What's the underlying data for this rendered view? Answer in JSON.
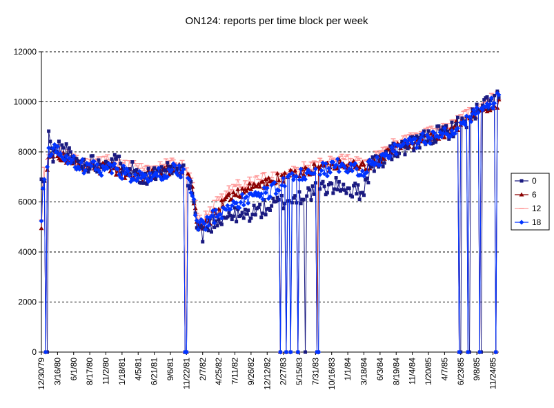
{
  "chart_data": {
    "type": "line",
    "title": "ON124: reports per time block per week",
    "xlabel": "",
    "ylabel": "",
    "ylim": [
      0,
      12000
    ],
    "yticks": [
      0,
      2000,
      4000,
      6000,
      8000,
      10000,
      12000
    ],
    "grid": "horizontal dashed",
    "legend_position": "right",
    "x_tick_labels": [
      "12/30/79",
      "3/16/80",
      "6/1/80",
      "8/17/80",
      "11/2/80",
      "1/18/81",
      "4/5/81",
      "6/21/81",
      "9/6/81",
      "11/22/81",
      "2/7/82",
      "4/25/82",
      "7/11/82",
      "9/26/82",
      "12/12/82",
      "2/27/83",
      "5/15/83",
      "7/31/83",
      "10/16/83",
      "1/1/84",
      "3/18/84",
      "6/3/84",
      "8/19/84",
      "11/4/84",
      "1/20/85",
      "4/7/85",
      "6/23/85",
      "9/8/85",
      "11/24/85"
    ],
    "series_colors": {
      "0": "#1a1a80",
      "6": "#8b0000",
      "12": "#ff9999",
      "18": "#0033ff"
    },
    "series_markers": {
      "0": "square",
      "6": "triangle",
      "12": "dash",
      "18": "diamond"
    },
    "week_start": "1979-12-30",
    "weeks": 313,
    "anchors_week": [
      0,
      1,
      2,
      3,
      4,
      5,
      6,
      7,
      8,
      10,
      12,
      14,
      17,
      20,
      25,
      30,
      35,
      40,
      45,
      50,
      55,
      60,
      65,
      70,
      75,
      80,
      85,
      90,
      95,
      98,
      99,
      100,
      103,
      106,
      110,
      115,
      120,
      125,
      130,
      135,
      140,
      145,
      150,
      155,
      160,
      165,
      170,
      175,
      180,
      185,
      190,
      195,
      200,
      205,
      210,
      215,
      220,
      225,
      230,
      235,
      240,
      245,
      250,
      255,
      260,
      265,
      270,
      275,
      280,
      285,
      290,
      295,
      300,
      305,
      310,
      312
    ],
    "series": [
      {
        "name": "0",
        "anchors": [
          6800,
          6900,
          6600,
          6300,
          7000,
          8700,
          8200,
          8000,
          7900,
          8000,
          8200,
          8100,
          8000,
          7800,
          7600,
          7500,
          7600,
          7500,
          7700,
          7600,
          7500,
          7400,
          7200,
          7000,
          7100,
          7000,
          7200,
          7300,
          7200,
          7100,
          6800,
          6700,
          6500,
          5000,
          4700,
          5100,
          5300,
          5400,
          5500,
          5400,
          5500,
          5600,
          5700,
          5800,
          5900,
          6000,
          6100,
          6200,
          6300,
          6400,
          6500,
          6600,
          6600,
          6700,
          6500,
          6400,
          6500,
          7500,
          7600,
          7800,
          8000,
          8100,
          8200,
          8300,
          8500,
          8600,
          8700,
          8800,
          8900,
          9100,
          9300,
          9500,
          9800,
          10000,
          10100,
          10200
        ]
      },
      {
        "name": "6",
        "anchors": [
          4800,
          6500,
          7000,
          7200,
          7300,
          7600,
          7800,
          7900,
          7900,
          8000,
          7900,
          7800,
          7700,
          7600,
          7500,
          7400,
          7400,
          7300,
          7400,
          7300,
          7200,
          7100,
          7100,
          7000,
          7100,
          7200,
          7300,
          7300,
          7300,
          7200,
          7100,
          6900,
          6500,
          5200,
          5000,
          5300,
          5600,
          6000,
          6300,
          6400,
          6500,
          6600,
          6700,
          6800,
          6900,
          7000,
          7100,
          7100,
          7200,
          7300,
          7400,
          7400,
          7500,
          7600,
          7500,
          7400,
          7400,
          7500,
          7700,
          7900,
          8100,
          8200,
          8300,
          8400,
          8500,
          8600,
          8700,
          8800,
          8900,
          9100,
          9300,
          9500,
          9700,
          9800,
          9900,
          9900
        ]
      },
      {
        "name": "12",
        "anchors": [
          5500,
          6700,
          7200,
          7400,
          7600,
          7900,
          8000,
          8100,
          8100,
          8200,
          8100,
          8000,
          7900,
          7800,
          7700,
          7600,
          7600,
          7600,
          7700,
          7600,
          7500,
          7500,
          7400,
          7300,
          7300,
          7400,
          7500,
          7600,
          7500,
          7400,
          7300,
          7100,
          6600,
          5500,
          5300,
          5700,
          6000,
          6300,
          6600,
          6700,
          6800,
          6900,
          7000,
          7000,
          7100,
          7200,
          7300,
          7300,
          7400,
          7500,
          7600,
          7600,
          7700,
          7800,
          7700,
          7600,
          7600,
          7700,
          7900,
          8100,
          8300,
          8400,
          8500,
          8600,
          8700,
          8800,
          8900,
          9000,
          9100,
          9300,
          9500,
          9700,
          9900,
          10100,
          10200,
          10300
        ]
      },
      {
        "name": "18",
        "anchors": [
          5400,
          6700,
          7000,
          7200,
          7500,
          7900,
          8000,
          8100,
          8100,
          8100,
          8000,
          7900,
          7800,
          7700,
          7500,
          7400,
          7400,
          7300,
          7400,
          7300,
          7200,
          7100,
          7000,
          6900,
          7000,
          7100,
          7200,
          7300,
          7200,
          7100,
          7000,
          6800,
          6400,
          5100,
          5000,
          5300,
          5500,
          5700,
          5900,
          6000,
          6100,
          6200,
          6300,
          6400,
          6600,
          6800,
          6900,
          7000,
          7100,
          7200,
          7300,
          7300,
          7400,
          7500,
          7400,
          7300,
          7300,
          7500,
          7700,
          7900,
          8100,
          8200,
          8300,
          8400,
          8500,
          8600,
          8700,
          8800,
          8900,
          9100,
          9300,
          9500,
          9700,
          9900,
          10100,
          10200
        ]
      }
    ],
    "zero_weeks": {
      "0": [
        3,
        4,
        98,
        99,
        163,
        167,
        170,
        175,
        180,
        188,
        189,
        285,
        286,
        291,
        292,
        299,
        300,
        310
      ],
      "6": [
        3,
        98,
        99,
        163,
        167,
        175,
        188,
        285,
        291,
        299,
        310
      ],
      "12": [
        3,
        98,
        163,
        175,
        188,
        285,
        299,
        310
      ],
      "18": [
        3,
        98,
        99,
        163,
        167,
        170,
        175,
        188,
        189,
        285,
        291,
        299,
        310
      ]
    }
  }
}
